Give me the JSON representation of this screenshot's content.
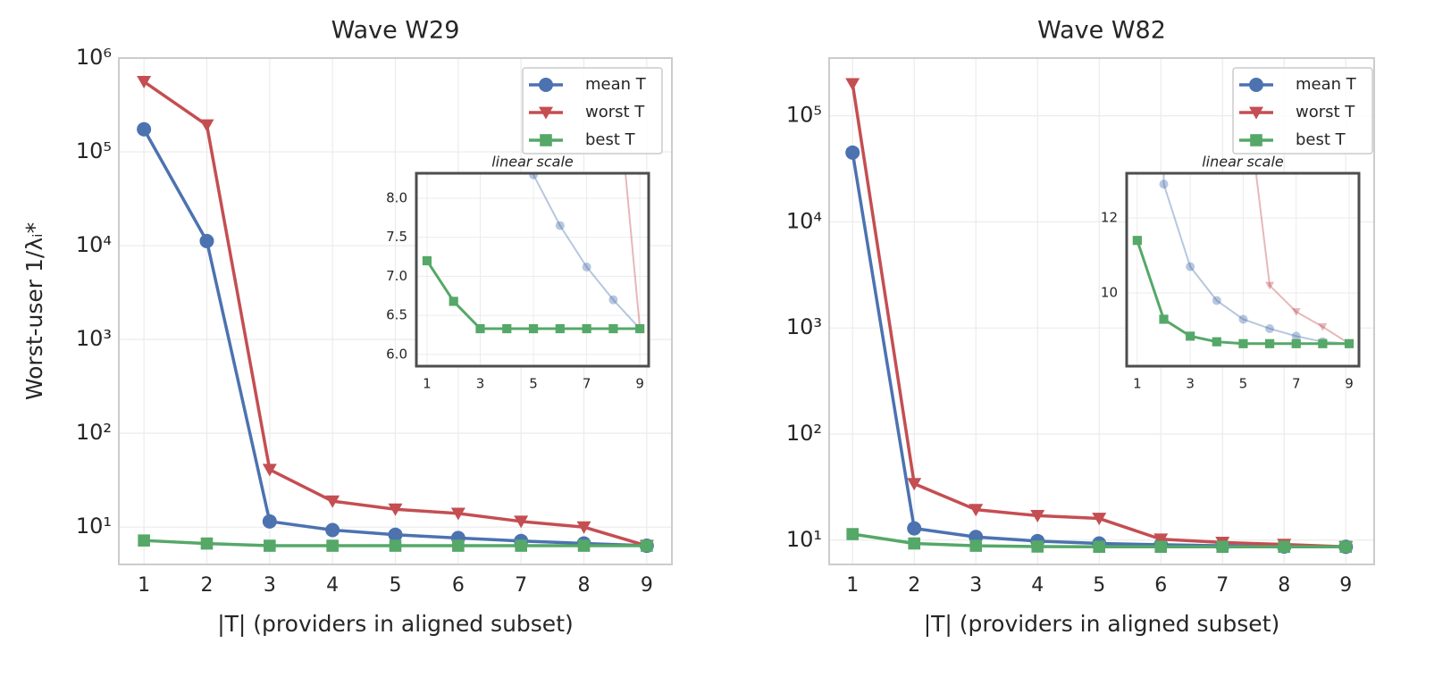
{
  "chart_data": [
    {
      "type": "line",
      "title": "Wave W29",
      "xlabel": "|T| (providers in aligned subset)",
      "ylabel": "Worst-user 1/λᵢ*",
      "x": [
        1,
        2,
        3,
        4,
        5,
        6,
        7,
        8,
        9
      ],
      "series": [
        {
          "name": "mean T",
          "color": "#4c72b0",
          "marker": "circle",
          "values": [
            174000,
            11200,
            11.5,
            9.3,
            8.3,
            7.65,
            7.12,
            6.7,
            6.33
          ]
        },
        {
          "name": "worst T",
          "color": "#c44e52",
          "marker": "triangle-down",
          "values": [
            560000,
            193000,
            41,
            18.9,
            15.5,
            14,
            11.5,
            10,
            6.33
          ]
        },
        {
          "name": "best T",
          "color": "#55a868",
          "marker": "square",
          "values": [
            7.2,
            6.68,
            6.33,
            6.33,
            6.33,
            6.33,
            6.33,
            6.33,
            6.33
          ]
        }
      ],
      "xlim": [
        0.6,
        9.4
      ],
      "xticks": [
        1,
        2,
        3,
        4,
        5,
        6,
        7,
        8,
        9
      ],
      "ylim": [
        4,
        1000000
      ],
      "log_y": true,
      "grid": true,
      "legend": "upper right",
      "yticks": [
        {
          "value": 10,
          "label": "10¹"
        },
        {
          "value": 100,
          "label": "10²"
        },
        {
          "value": 1000,
          "label": "10³"
        },
        {
          "value": 10000,
          "label": "10⁴"
        },
        {
          "value": 100000,
          "label": "10⁵"
        },
        {
          "value": 1000000,
          "label": "10⁶"
        }
      ],
      "inset": {
        "title": "linear scale",
        "xlim": [
          0.6,
          9.33
        ],
        "ylim": [
          5.85,
          8.32
        ],
        "xticks": [
          1,
          3,
          5,
          7,
          9
        ],
        "yticks": [
          {
            "value": 6,
            "label": "6.0"
          },
          {
            "value": 6.5,
            "label": "6.5"
          },
          {
            "value": 7,
            "label": "7.0"
          },
          {
            "value": 7.5,
            "label": "7.5"
          },
          {
            "value": 8,
            "label": "8.0"
          }
        ]
      }
    },
    {
      "type": "line",
      "title": "Wave W82",
      "xlabel": "|T| (providers in aligned subset)",
      "x": [
        1,
        2,
        3,
        4,
        5,
        6,
        7,
        8,
        9
      ],
      "series": [
        {
          "name": "mean T",
          "color": "#4c72b0",
          "marker": "circle",
          "values": [
            45000,
            12.9,
            10.7,
            9.8,
            9.3,
            9.05,
            8.85,
            8.7,
            8.65
          ]
        },
        {
          "name": "worst T",
          "color": "#c44e52",
          "marker": "triangle-down",
          "values": [
            200000,
            34,
            19.4,
            17,
            16,
            10.2,
            9.5,
            9.1,
            8.65
          ]
        },
        {
          "name": "best T",
          "color": "#55a868",
          "marker": "square",
          "values": [
            11.4,
            9.3,
            8.85,
            8.7,
            8.65,
            8.65,
            8.65,
            8.65,
            8.65
          ]
        }
      ],
      "xlim": [
        0.62,
        9.46
      ],
      "xticks": [
        1,
        2,
        3,
        4,
        5,
        6,
        7,
        8,
        9
      ],
      "ylim": [
        5.9,
        350000
      ],
      "log_y": true,
      "grid": true,
      "legend": "upper right",
      "yticks": [
        {
          "value": 10,
          "label": "10¹"
        },
        {
          "value": 100,
          "label": "10²"
        },
        {
          "value": 1000,
          "label": "10³"
        },
        {
          "value": 10000,
          "label": "10⁴"
        },
        {
          "value": 100000,
          "label": "10⁵"
        }
      ],
      "inset": {
        "title": "linear scale",
        "xlim": [
          0.6,
          9.37
        ],
        "ylim": [
          8.05,
          13.19
        ],
        "xticks": [
          1,
          3,
          5,
          7,
          9
        ],
        "yticks": [
          10,
          12
        ]
      }
    }
  ]
}
